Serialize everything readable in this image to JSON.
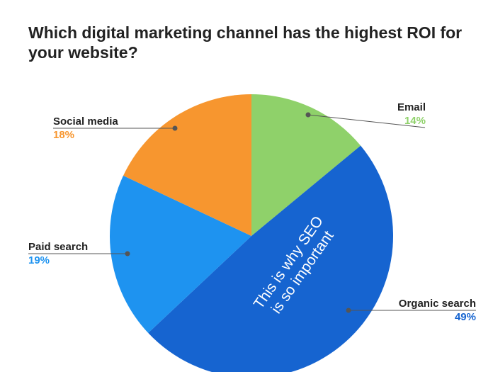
{
  "chart_data": {
    "type": "pie",
    "title": "Which digital marketing channel has the highest ROI for your website?",
    "categories": [
      "Email",
      "Organic search",
      "Paid search",
      "Social media"
    ],
    "values": [
      14,
      49,
      19,
      18
    ],
    "value_labels": [
      "14%",
      "49%",
      "19%",
      "18%"
    ],
    "colors": [
      "#8fd16a",
      "#1664d0",
      "#1e93f0",
      "#f7962f"
    ],
    "annotation": [
      "This is why SEO",
      "is so important"
    ]
  }
}
